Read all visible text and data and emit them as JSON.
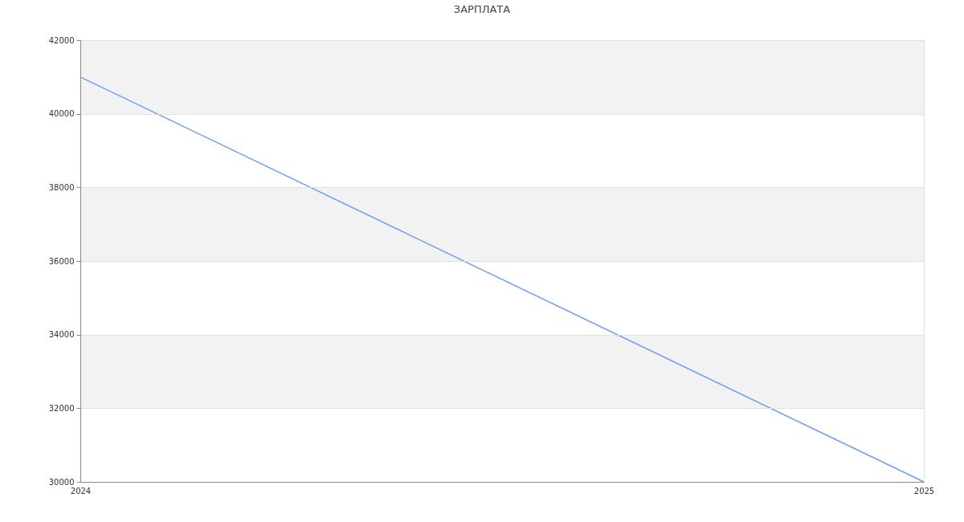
{
  "chart_data": {
    "type": "line",
    "title": "ЗАРПЛАТА",
    "x": [
      2024,
      2025
    ],
    "series": [
      {
        "color": "#6d9cf5",
        "values": [
          41000,
          30000
        ]
      }
    ],
    "xlim": [
      2024,
      2025
    ],
    "xticks": [
      2024,
      2025
    ],
    "ylim": [
      30000,
      42000
    ],
    "yticks": [
      30000,
      32000,
      34000,
      36000,
      38000,
      40000,
      42000
    ],
    "grid": true,
    "bands": [
      {
        "axis": "y",
        "from": 32000,
        "to": 34000,
        "color": "#f2f2f2"
      },
      {
        "axis": "y",
        "from": 36000,
        "to": 38000,
        "color": "#f2f2f2"
      },
      {
        "axis": "y",
        "from": 40000,
        "to": 42000,
        "color": "#f2f2f2"
      }
    ]
  }
}
